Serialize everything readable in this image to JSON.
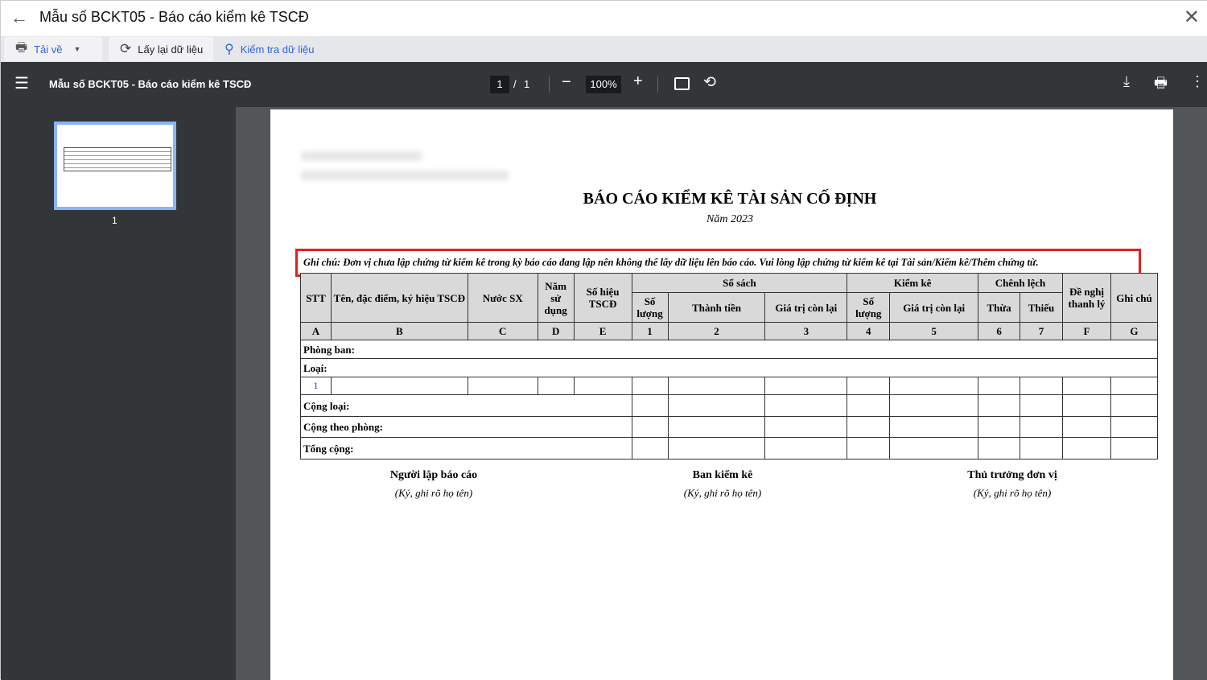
{
  "window": {
    "title": "Mẫu số BCKT05 - Báo cáo kiểm kê TSCĐ"
  },
  "toolbar": {
    "download": "Tải về",
    "reload": "Lấy lại dữ liệu",
    "check": "Kiểm tra dữ liệu"
  },
  "pdf": {
    "title": "Mẫu số BCKT05 - Báo cáo kiểm kê TSCĐ",
    "page_current": "1",
    "page_sep": "/",
    "page_total": "1",
    "zoom": "100%",
    "thumb_label": "1"
  },
  "report": {
    "title": "BÁO CÁO KIỂM KÊ TÀI SẢN CỐ ĐỊNH",
    "year": "Năm 2023",
    "note": "Ghi chú: Đơn vị chưa lập chứng từ kiểm kê trong kỳ báo cáo đang lập nên không thể lấy dữ liệu lên báo cáo. Vui lòng lập chứng từ kiểm kê tại Tài sản/Kiểm kê/Thêm chứng từ.",
    "headers": {
      "stt": "STT",
      "name": "Tên, đặc điểm, ký hiệu TSCĐ",
      "country": "Nước SX",
      "year": "Năm sử dụng",
      "code": "Số hiệu TSCĐ",
      "books": "Sổ sách",
      "inventory": "Kiểm kê",
      "diff": "Chênh lệch",
      "liquidate": "Đề nghị thanh lý",
      "note": "Ghi chú",
      "qty": "Số lượng",
      "amount": "Thành tiền",
      "residual": "Giá trị còn lại",
      "excess": "Thừa",
      "shortage": "Thiếu"
    },
    "codes": [
      "A",
      "B",
      "C",
      "D",
      "E",
      "1",
      "2",
      "3",
      "4",
      "5",
      "6",
      "7",
      "F",
      "G"
    ],
    "rows": {
      "dept": "Phòng ban:",
      "type": "Loại:",
      "item_no": "1",
      "sum_type": "Cộng loại:",
      "sum_dept": "Cộng theo phòng:",
      "total": "Tổng cộng:"
    },
    "signatures": [
      {
        "role": "Người lập báo cáo",
        "hint": "(Ký, ghi rõ họ tên)"
      },
      {
        "role": "Ban kiểm kê",
        "hint": "(Ký, ghi rõ họ tên)"
      },
      {
        "role": "Thủ trưởng đơn vị",
        "hint": "(Ký, ghi rõ họ tên)"
      }
    ]
  },
  "colors": {
    "accent": "#2f63e0",
    "highlight": "#e02020",
    "pdf_bar": "#323639"
  }
}
